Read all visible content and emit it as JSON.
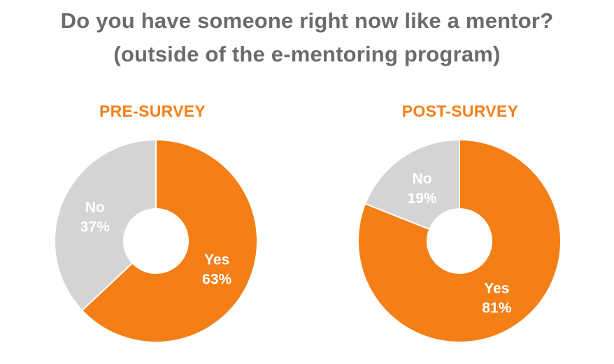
{
  "title": {
    "line1": "Do you have someone right now like a mentor?",
    "line2": "(outside of the e-mentoring program)"
  },
  "colors": {
    "title": "#6b6b6b",
    "yes": "#f47f17",
    "no": "#d4d4d4",
    "accent": "#f47f17"
  },
  "chart_data": [
    {
      "type": "pie",
      "variant": "donut",
      "title": "PRE-SURVEY",
      "slices": [
        {
          "label": "Yes",
          "value": 63,
          "display": "63%",
          "color": "#f47f17"
        },
        {
          "label": "No",
          "value": 37,
          "display": "37%",
          "color": "#d4d4d4"
        }
      ]
    },
    {
      "type": "pie",
      "variant": "donut",
      "title": "POST-SURVEY",
      "slices": [
        {
          "label": "Yes",
          "value": 81,
          "display": "81%",
          "color": "#f47f17"
        },
        {
          "label": "No",
          "value": 19,
          "display": "19%",
          "color": "#d4d4d4"
        }
      ]
    }
  ]
}
